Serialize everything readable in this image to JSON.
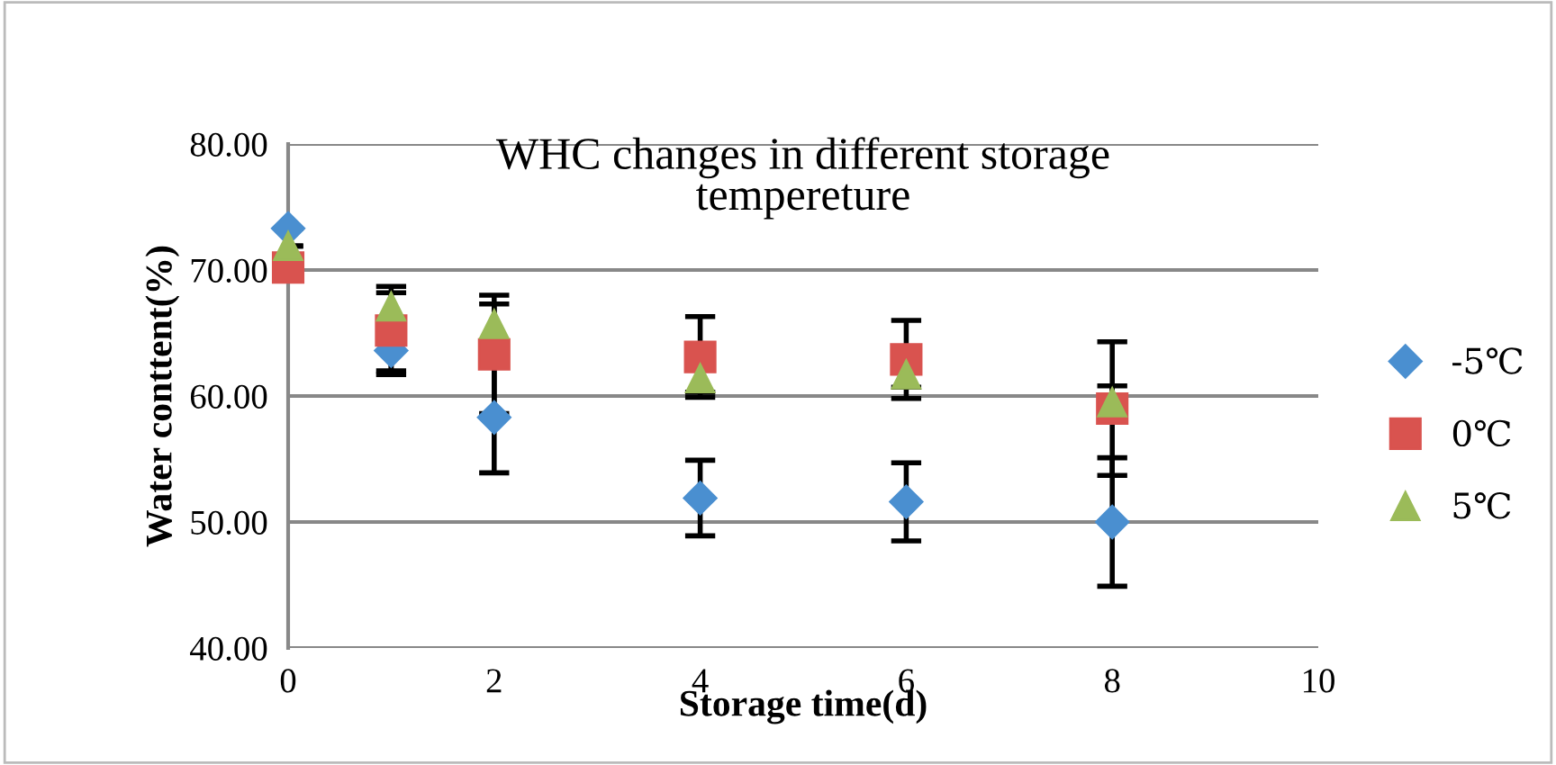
{
  "chart_data": {
    "type": "scatter",
    "title": "WHC changes in different storage\ntempereture",
    "xlabel": "Storage time(d)",
    "ylabel": "Water conttent(%)",
    "xlim": [
      0,
      10
    ],
    "xticks": [
      0,
      2,
      4,
      6,
      8,
      10
    ],
    "ylim": [
      40,
      80
    ],
    "yticks": [
      {
        "value": 40,
        "label": "40.00"
      },
      {
        "value": 50,
        "label": "50.00"
      },
      {
        "value": 60,
        "label": "60.00"
      },
      {
        "value": 70,
        "label": "70.00"
      },
      {
        "value": 80,
        "label": "80.00"
      }
    ],
    "grid": "y",
    "legend": "right",
    "series": [
      {
        "name": "-5℃",
        "color": "#4a8fd0",
        "marker": "diamond",
        "x": [
          0,
          1,
          2,
          4,
          6,
          8
        ],
        "values": [
          73.3,
          63.6,
          58.3,
          51.9,
          51.6,
          50.0
        ],
        "errors": [
          null,
          1.6,
          4.4,
          3.0,
          3.1,
          5.1
        ]
      },
      {
        "name": "0℃",
        "color": "#d9534f",
        "marker": "square",
        "x": [
          0,
          1,
          2,
          4,
          6,
          8
        ],
        "values": [
          70.2,
          65.2,
          63.3,
          63.1,
          62.9,
          59.0
        ],
        "errors": [
          null,
          3.5,
          4.7,
          3.2,
          3.1,
          5.3
        ]
      },
      {
        "name": "5℃",
        "color": "#9bbb59",
        "marker": "triangle",
        "x": [
          0,
          1,
          2,
          4,
          6,
          8
        ],
        "values": [
          71.9,
          67.1,
          65.7,
          61.4,
          61.7,
          59.5
        ],
        "errors": [
          null,
          1.1,
          1.6,
          1.1,
          1.0,
          1.3
        ]
      }
    ]
  }
}
